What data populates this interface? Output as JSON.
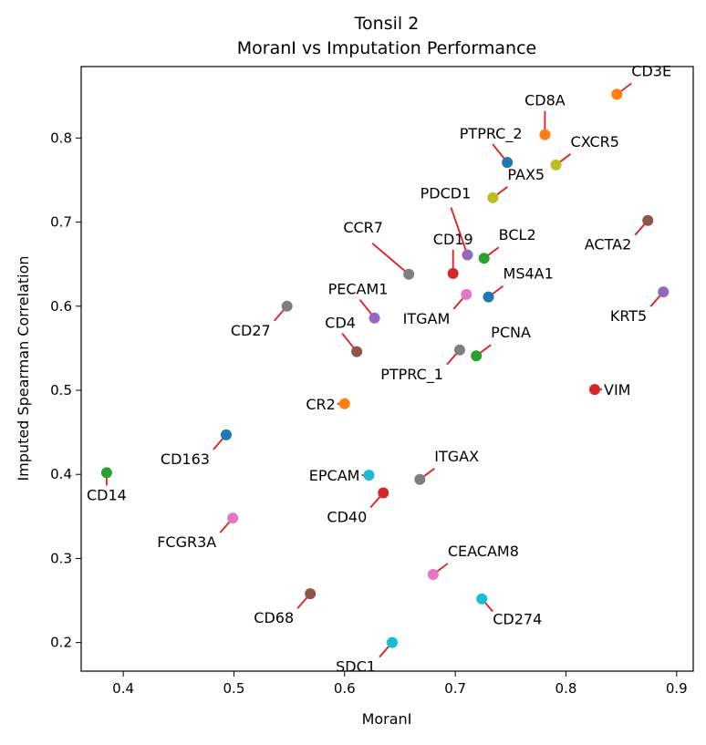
{
  "chart_data": {
    "type": "scatter",
    "title": "Tonsil 2",
    "subtitle": "MoranI vs Imputation Performance",
    "xlabel": "MoranI",
    "ylabel": "Imputed Spearman Correlation",
    "xlim": [
      0.362,
      0.915
    ],
    "ylim": [
      0.166,
      0.885
    ],
    "xticks": [
      0.4,
      0.5,
      0.6,
      0.7,
      0.8,
      0.9
    ],
    "xtick_labels": [
      "0.4",
      "0.5",
      "0.6",
      "0.7",
      "0.8",
      "0.9"
    ],
    "yticks": [
      0.2,
      0.3,
      0.4,
      0.5,
      0.6,
      0.7,
      0.8
    ],
    "ytick_labels": [
      "0.2",
      "0.3",
      "0.4",
      "0.5",
      "0.6",
      "0.7",
      "0.8"
    ],
    "grid": false,
    "leader_line_color": "#e41a1c",
    "points": [
      {
        "label": "CD3E",
        "x": 0.846,
        "y": 0.852,
        "color": "#ff7f0e",
        "label_dir": "ne"
      },
      {
        "label": "CD8A",
        "x": 0.781,
        "y": 0.804,
        "color": "#ff7f0e",
        "label_dir": "n"
      },
      {
        "label": "PTPRC_2",
        "x": 0.747,
        "y": 0.771,
        "color": "#1f77b4",
        "label_dir": "nw"
      },
      {
        "label": "CXCR5",
        "x": 0.791,
        "y": 0.768,
        "color": "#bcbd22",
        "label_dir": "ne"
      },
      {
        "label": "PAX5",
        "x": 0.734,
        "y": 0.729,
        "color": "#bcbd22",
        "label_dir": "ne"
      },
      {
        "label": "PDCD1",
        "x": 0.711,
        "y": 0.661,
        "color": "#9467bd",
        "label_dir": "nw-high"
      },
      {
        "label": "ACTA2",
        "x": 0.874,
        "y": 0.702,
        "color": "#8c564b",
        "label_dir": "sw"
      },
      {
        "label": "CCR7",
        "x": 0.658,
        "y": 0.638,
        "color": "#7f7f7f",
        "label_dir": "nw-far"
      },
      {
        "label": "CD19",
        "x": 0.698,
        "y": 0.639,
        "color": "#d62728",
        "label_dir": "n"
      },
      {
        "label": "BCL2",
        "x": 0.726,
        "y": 0.657,
        "color": "#2ca02c",
        "label_dir": "ne"
      },
      {
        "label": "MS4A1",
        "x": 0.73,
        "y": 0.611,
        "color": "#1f77b4",
        "label_dir": "ne"
      },
      {
        "label": "PECAM1",
        "x": 0.627,
        "y": 0.586,
        "color": "#9467bd",
        "label_dir": "nw"
      },
      {
        "label": "ITGAM",
        "x": 0.71,
        "y": 0.614,
        "color": "#e377c2",
        "label_dir": "sw"
      },
      {
        "label": "CD27",
        "x": 0.548,
        "y": 0.6,
        "color": "#7f7f7f",
        "label_dir": "sw"
      },
      {
        "label": "KRT5",
        "x": 0.888,
        "y": 0.617,
        "color": "#9467bd",
        "label_dir": "sw"
      },
      {
        "label": "CD4",
        "x": 0.611,
        "y": 0.546,
        "color": "#8c564b",
        "label_dir": "nw"
      },
      {
        "label": "PCNA",
        "x": 0.719,
        "y": 0.541,
        "color": "#2ca02c",
        "label_dir": "ne"
      },
      {
        "label": "PTPRC_1",
        "x": 0.704,
        "y": 0.548,
        "color": "#7f7f7f",
        "label_dir": "sw"
      },
      {
        "label": "VIM",
        "x": 0.826,
        "y": 0.501,
        "color": "#d62728",
        "label_dir": "e"
      },
      {
        "label": "CR2",
        "x": 0.6,
        "y": 0.484,
        "color": "#ff7f0e",
        "label_dir": "w"
      },
      {
        "label": "CD163",
        "x": 0.493,
        "y": 0.447,
        "color": "#1f77b4",
        "label_dir": "sw"
      },
      {
        "label": "CD14",
        "x": 0.385,
        "y": 0.402,
        "color": "#2ca02c",
        "label_dir": "s"
      },
      {
        "label": "ITGAX",
        "x": 0.668,
        "y": 0.394,
        "color": "#7f7f7f",
        "label_dir": "ne"
      },
      {
        "label": "EPCAM",
        "x": 0.622,
        "y": 0.399,
        "color": "#17becf",
        "label_dir": "w"
      },
      {
        "label": "CD40",
        "x": 0.635,
        "y": 0.378,
        "color": "#d62728",
        "label_dir": "sw"
      },
      {
        "label": "FCGR3A",
        "x": 0.499,
        "y": 0.348,
        "color": "#e377c2",
        "label_dir": "sw"
      },
      {
        "label": "CEACAM8",
        "x": 0.68,
        "y": 0.281,
        "color": "#e377c2",
        "label_dir": "ne"
      },
      {
        "label": "CD68",
        "x": 0.569,
        "y": 0.258,
        "color": "#8c564b",
        "label_dir": "sw"
      },
      {
        "label": "CD274",
        "x": 0.724,
        "y": 0.252,
        "color": "#17becf",
        "label_dir": "se"
      },
      {
        "label": "SDC1",
        "x": 0.643,
        "y": 0.2,
        "color": "#17becf",
        "label_dir": "sw"
      }
    ]
  }
}
